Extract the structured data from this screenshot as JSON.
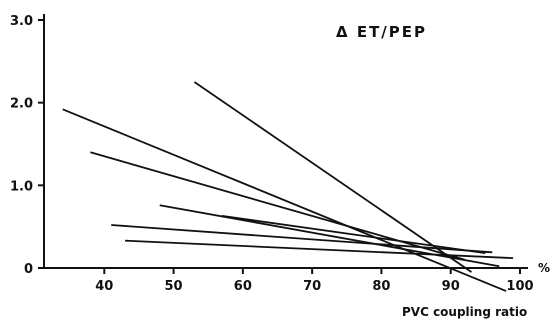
{
  "chart_data": {
    "type": "line",
    "title": "Δ ET/PEP",
    "xlabel": "PVC coupling ratio",
    "x_unit": "%",
    "ylabel": "",
    "xlim": [
      30,
      100
    ],
    "ylim": [
      0,
      3.0
    ],
    "x_ticks": [
      "40",
      "50",
      "60",
      "70",
      "80",
      "90",
      "100"
    ],
    "y_ticks": [
      "0",
      "1.0",
      "2.0",
      "3.0"
    ],
    "grid": false,
    "legend": "none",
    "line_color": "#111111",
    "series": [
      {
        "x": [
          53,
          93
        ],
        "y": [
          2.25,
          -0.05
        ]
      },
      {
        "x": [
          34,
          98
        ],
        "y": [
          1.92,
          -0.28
        ]
      },
      {
        "x": [
          38,
          92
        ],
        "y": [
          1.4,
          0.1
        ]
      },
      {
        "x": [
          48,
          97
        ],
        "y": [
          0.76,
          0.02
        ]
      },
      {
        "x": [
          57,
          95
        ],
        "y": [
          0.63,
          0.18
        ]
      },
      {
        "x": [
          41,
          96
        ],
        "y": [
          0.52,
          0.19
        ]
      },
      {
        "x": [
          43,
          99
        ],
        "y": [
          0.33,
          0.12
        ]
      }
    ]
  }
}
